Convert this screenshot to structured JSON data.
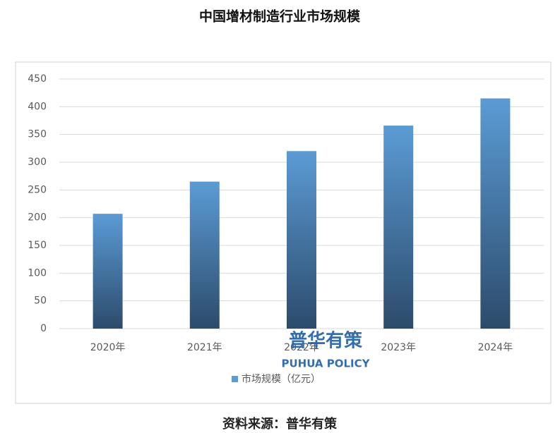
{
  "chart_data": {
    "type": "bar",
    "title": "中国增材制造行业市场规模",
    "categories": [
      "2020年",
      "2021年",
      "2022年",
      "2023年",
      "2024年"
    ],
    "series": [
      {
        "name": "市场规模（亿元）",
        "color": "#5b9bd5",
        "values": [
          207,
          265,
          320,
          366,
          415
        ]
      }
    ],
    "ylim": [
      0,
      450
    ],
    "yticks": [
      0,
      50,
      100,
      150,
      200,
      250,
      300,
      350,
      400,
      450
    ],
    "grid": true,
    "legend": "bottom",
    "watermark": [
      "普华有策",
      "PUHUA POLICY"
    ],
    "source": "资料来源：普华有策"
  }
}
